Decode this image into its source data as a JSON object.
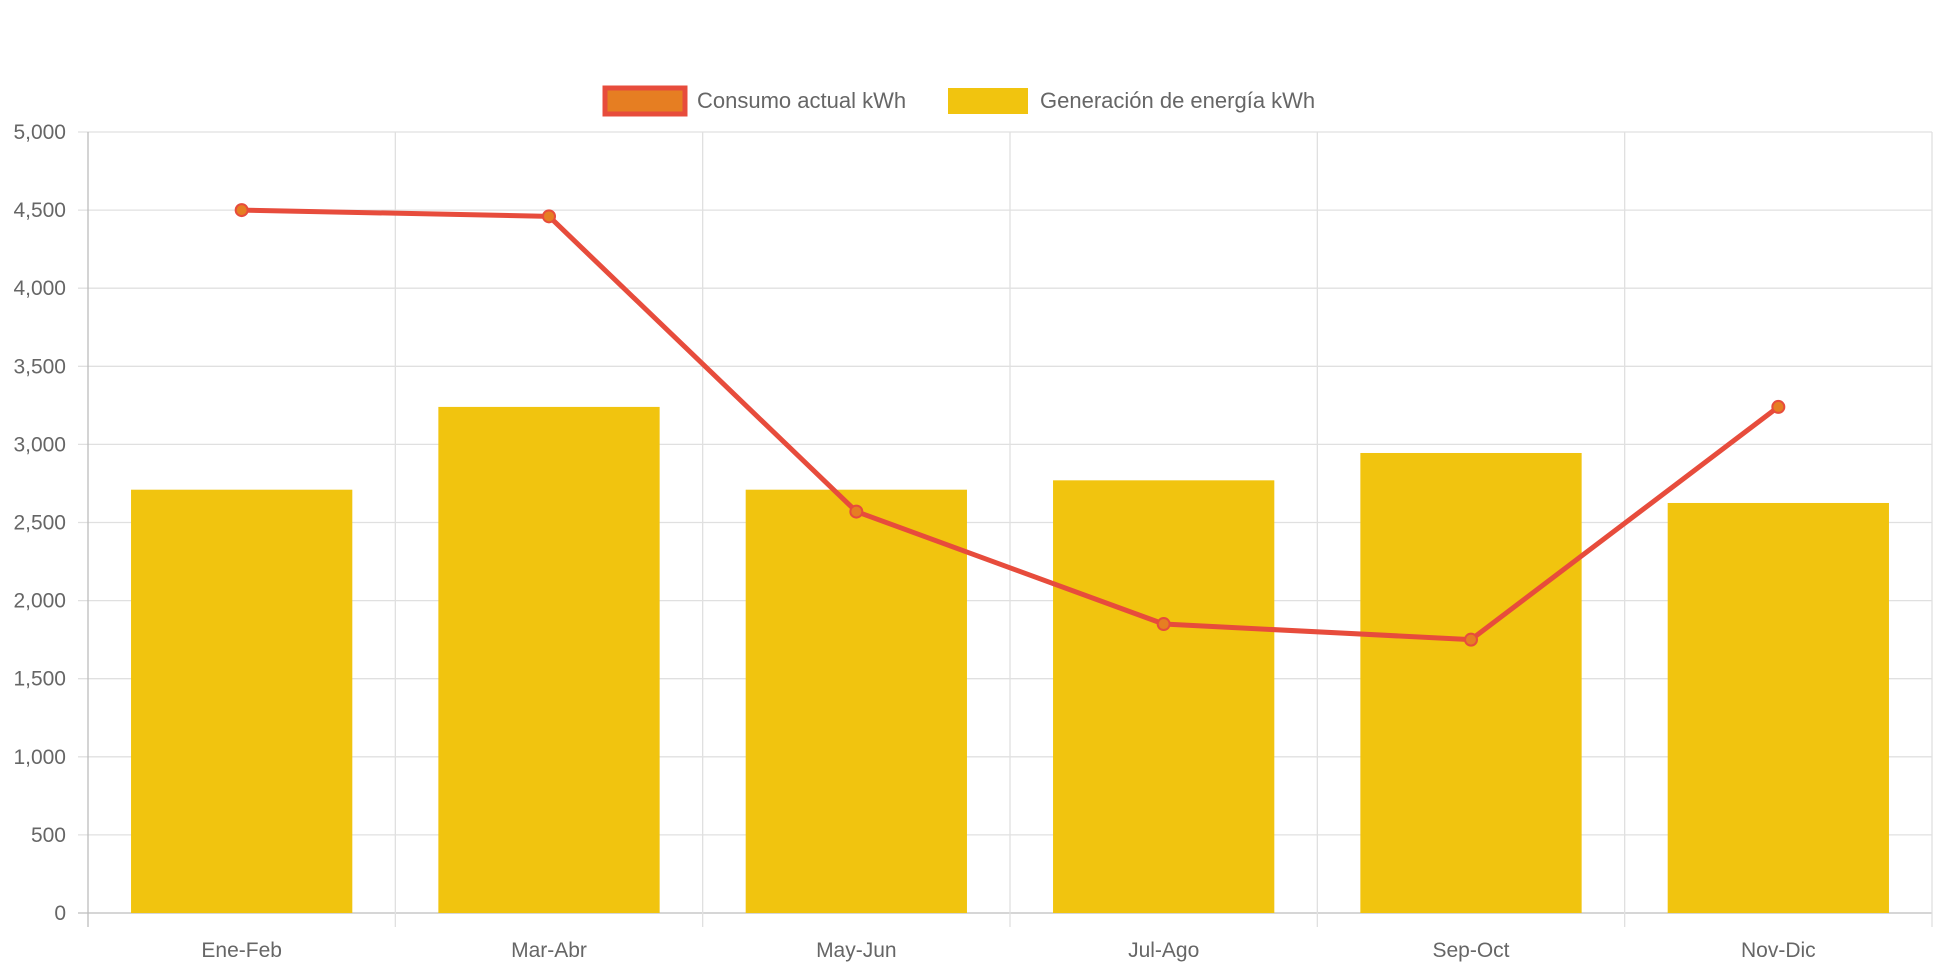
{
  "chart_data": {
    "type": "bar",
    "categories": [
      "Ene-Feb",
      "Mar-Abr",
      "May-Jun",
      "Jul-Ago",
      "Sep-Oct",
      "Nov-Dic"
    ],
    "series": [
      {
        "name": "Consumo actual kWh",
        "type": "line",
        "values": [
          4500,
          4460,
          2570,
          1850,
          1750,
          3240
        ],
        "color": "#e74c3c",
        "point_color": "#e67e22"
      },
      {
        "name": "Generación de energía kWh",
        "type": "bar",
        "values": [
          2710,
          3240,
          2710,
          2770,
          2945,
          2625
        ],
        "color": "#f1c40f"
      }
    ],
    "y_ticks": [
      "0",
      "500",
      "1,000",
      "1,500",
      "2,000",
      "2,500",
      "3,000",
      "3,500",
      "4,000",
      "4,500",
      "5,000"
    ],
    "ylim": [
      0,
      5000
    ],
    "grid": true,
    "legend_position": "top-center"
  }
}
